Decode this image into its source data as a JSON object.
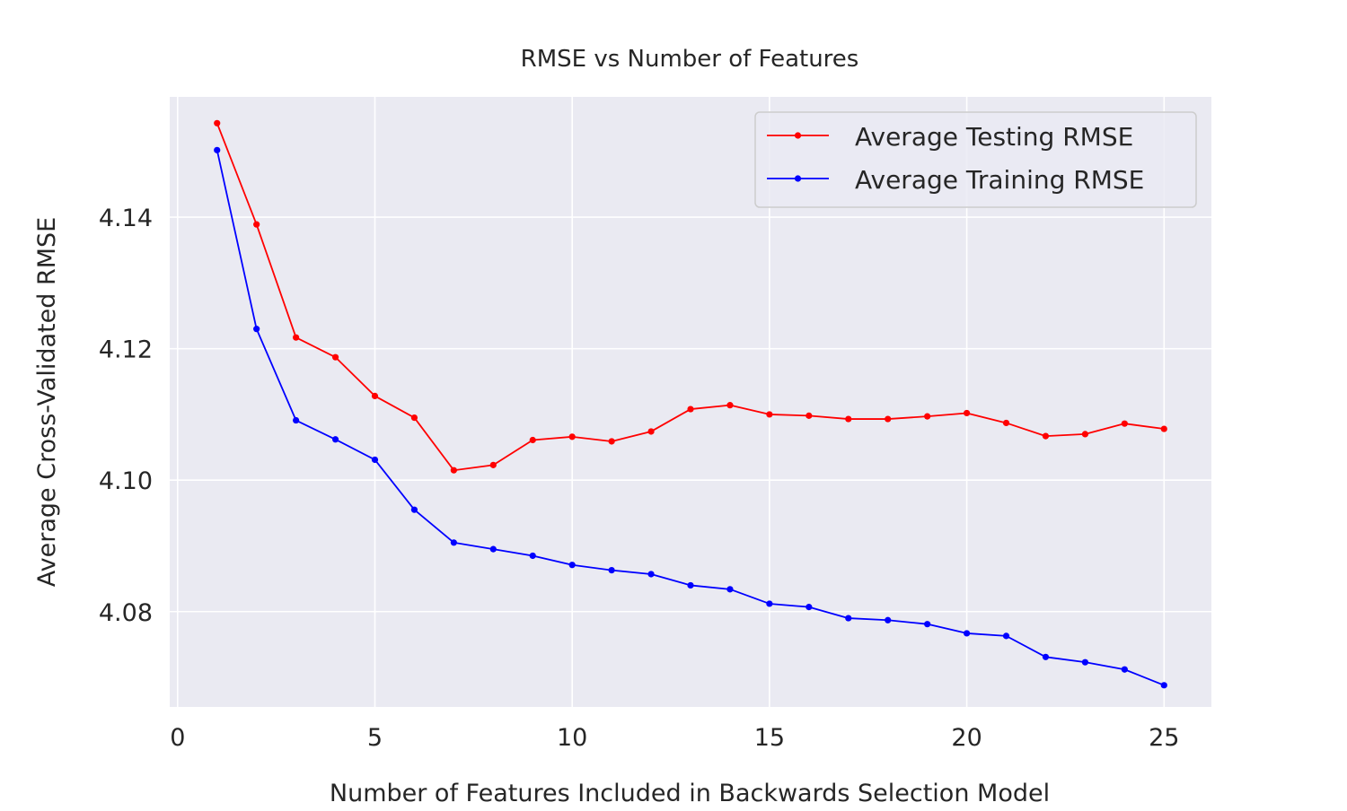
{
  "chart_data": {
    "type": "line",
    "title": "RMSE vs Number of Features",
    "xlabel": "Number of Features Included in Backwards Selection Model",
    "ylabel": "Average Cross-Validated RMSE",
    "xlim": [
      -0.2,
      26.2
    ],
    "ylim": [
      4.0655,
      4.1583
    ],
    "x_ticks": [
      0,
      5,
      10,
      15,
      20,
      25
    ],
    "x_tick_labels": [
      "0",
      "5",
      "10",
      "15",
      "20",
      "25"
    ],
    "y_ticks": [
      4.08,
      4.1,
      4.12,
      4.14
    ],
    "y_tick_labels": [
      "4.08",
      "4.10",
      "4.12",
      "4.14"
    ],
    "grid": true,
    "legend_position": "top-right",
    "x": [
      1,
      2,
      3,
      4,
      5,
      6,
      7,
      8,
      9,
      10,
      11,
      12,
      13,
      14,
      15,
      16,
      17,
      18,
      19,
      20,
      21,
      22,
      23,
      24,
      25
    ],
    "series": [
      {
        "name": "Average Testing RMSE",
        "color": "#ff0000",
        "values": [
          4.1543,
          4.1389,
          4.1217,
          4.1187,
          4.1128,
          4.1095,
          4.1015,
          4.1023,
          4.1061,
          4.1066,
          4.1059,
          4.1074,
          4.1108,
          4.1114,
          4.11,
          4.1098,
          4.1093,
          4.1093,
          4.1097,
          4.1102,
          4.1087,
          4.1067,
          4.107,
          4.1086,
          4.1078
        ]
      },
      {
        "name": "Average Training RMSE",
        "color": "#0000ff",
        "values": [
          4.1502,
          4.123,
          4.1091,
          4.1062,
          4.1031,
          4.0955,
          4.0905,
          4.0895,
          4.0885,
          4.0871,
          4.0863,
          4.0857,
          4.084,
          4.0834,
          4.0812,
          4.0807,
          4.079,
          4.0787,
          4.0781,
          4.0767,
          4.0763,
          4.0731,
          4.0723,
          4.0712,
          4.0688
        ]
      }
    ]
  },
  "colors": {
    "plot_background": "#eaeaf2",
    "grid": "#ffffff",
    "text": "#262626"
  }
}
